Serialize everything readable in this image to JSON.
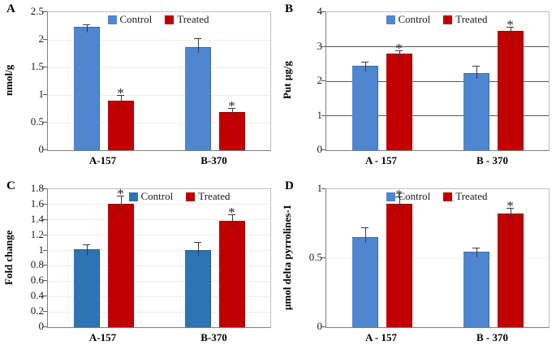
{
  "figure": {
    "kind": "four-panel grouped bar figure with error bars and significance asterisks",
    "background": "#ffffff",
    "sig_symbol": "*"
  },
  "legend": {
    "control_label": "Control",
    "treated_label": "Treated"
  },
  "colors": {
    "control_blue": "#4E86D0",
    "control_blue_dark": "#2E74B5",
    "treated_red": "#C00000",
    "axis": "#7f7f7f",
    "tick": "#595959",
    "error_bar": "#3a3a3a"
  },
  "chart_data": [
    {
      "panel": "A",
      "type": "bar",
      "ylabel": "nmol/g",
      "xlabel": "",
      "ylim": [
        0,
        2.5
      ],
      "yticks": [
        0,
        0.5,
        1,
        1.5,
        2,
        2.5
      ],
      "ytick_labels": [
        "0",
        "0.5",
        "1",
        "1.5",
        "2",
        "2.5"
      ],
      "categories": [
        "A-157",
        "B-370"
      ],
      "series": [
        {
          "name": "Control",
          "color": "#4E86D0",
          "edge": "#3B6DB0",
          "values": [
            2.22,
            1.86
          ],
          "errors": [
            0.05,
            0.15
          ],
          "sig": [
            false,
            false
          ]
        },
        {
          "name": "Treated",
          "color": "#C00000",
          "edge": "#960000",
          "values": [
            0.88,
            0.68
          ],
          "errors": [
            0.11,
            0.07
          ],
          "sig": [
            true,
            true
          ]
        }
      ],
      "grid": "on",
      "grid_color": "#ededed",
      "legend_position": "top-center",
      "legend_offset": 0
    },
    {
      "panel": "B",
      "type": "bar",
      "ylabel": "Put µg/g",
      "xlabel": "",
      "ylim": [
        0,
        4
      ],
      "yticks": [
        0,
        1,
        2,
        3,
        4
      ],
      "ytick_labels": [
        "0",
        "1",
        "2",
        "3",
        "4"
      ],
      "categories": [
        "A - 157",
        "B - 370"
      ],
      "series": [
        {
          "name": "Control",
          "color": "#4E86D0",
          "edge": "#3B6DB0",
          "values": [
            2.43,
            2.21
          ],
          "errors": [
            0.12,
            0.22
          ],
          "sig": [
            false,
            false
          ]
        },
        {
          "name": "Treated",
          "color": "#C00000",
          "edge": "#960000",
          "values": [
            2.77,
            3.43
          ],
          "errors": [
            0.1,
            0.13
          ],
          "sig": [
            true,
            true
          ]
        }
      ],
      "grid": "on",
      "grid_color": "#595959",
      "legend_position": "top-center",
      "legend_offset": 0
    },
    {
      "panel": "C",
      "type": "bar",
      "ylabel": "Fold change",
      "xlabel": "",
      "ylim": [
        0,
        1.8
      ],
      "yticks": [
        0,
        0.2,
        0.4,
        0.6,
        0.8,
        1,
        1.2,
        1.4,
        1.6,
        1.8
      ],
      "ytick_labels": [
        "0",
        "0.2",
        "0.4",
        "0.6",
        "0.8",
        "1",
        "1.2",
        "1.4",
        "1.6",
        "1.8"
      ],
      "categories": [
        "A-157",
        "B-370"
      ],
      "series": [
        {
          "name": "Control",
          "color": "#2E74B5",
          "edge": "#235A8C",
          "values": [
            1.01,
            1.0
          ],
          "errors": [
            0.06,
            0.1
          ],
          "sig": [
            false,
            false
          ]
        },
        {
          "name": "Treated",
          "color": "#C00000",
          "edge": "#960000",
          "values": [
            1.6,
            1.38
          ],
          "errors": [
            0.1,
            0.08
          ],
          "sig": [
            true,
            true
          ]
        }
      ],
      "grid": "on",
      "grid_color": "#ededed",
      "legend_position": "top-right-of-center",
      "legend_offset": 26
    },
    {
      "panel": "D",
      "type": "bar",
      "ylabel": "µmol delta pyrrolines-1",
      "xlabel": "",
      "ylim": [
        0,
        1
      ],
      "yticks": [
        0,
        0.5,
        1
      ],
      "ytick_labels": [
        "0",
        "0.5",
        "1"
      ],
      "categories": [
        "A - 157",
        "B - 370"
      ],
      "series": [
        {
          "name": "Control",
          "color": "#4E86D0",
          "edge": "#3B6DB0",
          "values": [
            0.65,
            0.54
          ],
          "errors": [
            0.07,
            0.03
          ],
          "sig": [
            false,
            false
          ]
        },
        {
          "name": "Treated",
          "color": "#C00000",
          "edge": "#960000",
          "values": [
            0.89,
            0.82
          ],
          "errors": [
            0.05,
            0.04
          ],
          "sig": [
            true,
            true
          ]
        }
      ],
      "grid": "on",
      "grid_color": "#f1f1f1",
      "legend_position": "top-center",
      "legend_offset": 0
    }
  ]
}
